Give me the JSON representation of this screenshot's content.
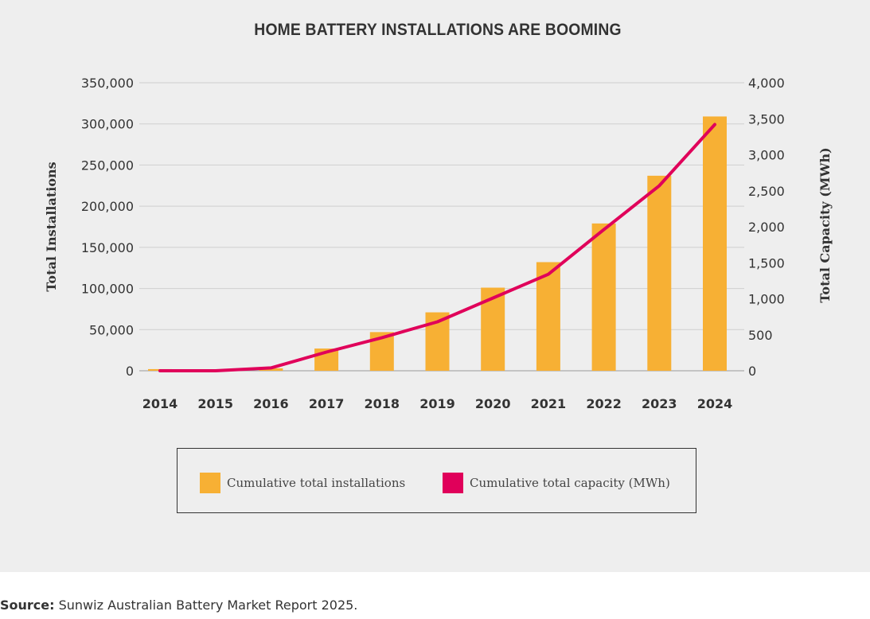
{
  "source": {
    "label": "Source:",
    "text": " Sunwiz Australian Battery Market Report 2025."
  },
  "chart_data": {
    "type": "bar",
    "title": "HOME BATTERY INSTALLATIONS ARE BOOMING",
    "categories": [
      "2014",
      "2015",
      "2016",
      "2017",
      "2018",
      "2019",
      "2020",
      "2021",
      "2022",
      "2023",
      "2024"
    ],
    "ylabel": "Total Installations",
    "y2label": "Total Capacity (MWh)",
    "ylim": [
      0,
      350000
    ],
    "y2lim": [
      0,
      4000
    ],
    "yticks": [
      "0",
      "50,000",
      "100,000",
      "150,000",
      "200,000",
      "250,000",
      "300,000",
      "350,000"
    ],
    "y2ticks": [
      "0",
      "500",
      "1,000",
      "1,500",
      "2,000",
      "2,500",
      "3,000",
      "3,500",
      "4,000"
    ],
    "grid": true,
    "series": [
      {
        "name": "Cumulative total installations",
        "type": "bar",
        "axis": "left",
        "color": "#f7b034",
        "values": [
          2000,
          500,
          3000,
          27000,
          47000,
          71000,
          101000,
          132000,
          179000,
          237000,
          309000
        ]
      },
      {
        "name": "Cumulative total capacity (MWh)",
        "type": "line",
        "axis": "right",
        "color": "#e0005a",
        "values": [
          0,
          0,
          40,
          260,
          460,
          680,
          1010,
          1340,
          1960,
          2570,
          3420
        ]
      }
    ],
    "legend_position": "bottom"
  }
}
